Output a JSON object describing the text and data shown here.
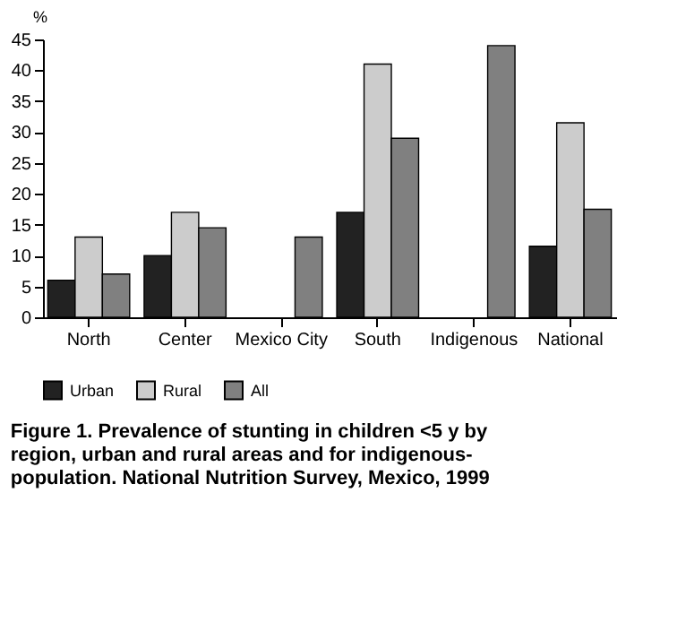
{
  "chart_data": {
    "type": "bar",
    "categories": [
      "North",
      "Center",
      "Mexico City",
      "South",
      "Indigenous",
      "National"
    ],
    "series": [
      {
        "name": "Urban",
        "color": "#222222",
        "values": [
          6,
          10,
          null,
          17,
          null,
          11.5
        ]
      },
      {
        "name": "Rural",
        "color": "#cccccc",
        "values": [
          13,
          17,
          null,
          41,
          null,
          31.5
        ]
      },
      {
        "name": "All",
        "color": "#808080",
        "values": [
          7,
          14.5,
          13,
          29,
          44,
          17.5
        ]
      }
    ],
    "ylabel": "%",
    "ylim": [
      0,
      45
    ],
    "yticks": [
      0,
      5,
      10,
      15,
      20,
      25,
      30,
      35,
      40,
      45
    ],
    "grid": false,
    "legend": "bottom",
    "annotations": [
      "Figure 1. Prevalence of stunting in children <5 y by region, urban and rural areas and for indigenous-population. National Nutrition Survey, Mexico, 1999"
    ]
  }
}
